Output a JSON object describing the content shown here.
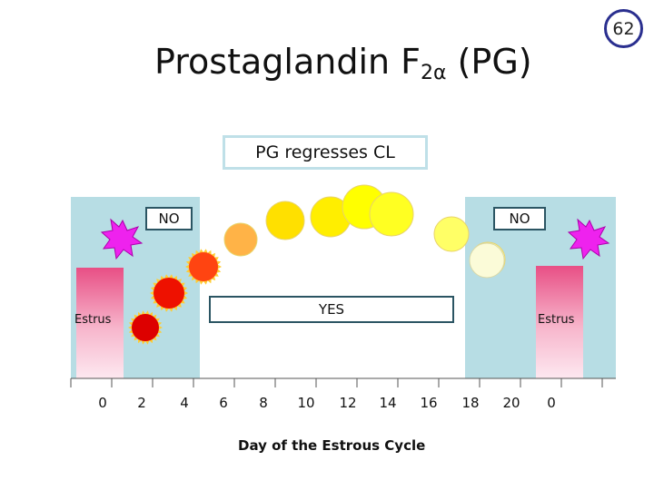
{
  "page_number": "62",
  "title": {
    "main": "Prostaglandin F",
    "subscript": "2α",
    "suffix": " (PG)"
  },
  "caption": "PG regresses CL",
  "labels": {
    "no_left": "NO",
    "no_right": "NO",
    "yes": "YES",
    "estrus_left": "Estrus",
    "estrus_right": "Estrus"
  },
  "x_axis": {
    "label": "Day of the Estrous Cycle",
    "ticks": [
      "0",
      "2",
      "4",
      "6",
      "8",
      "10",
      "12",
      "14",
      "16",
      "18",
      "20",
      "0"
    ]
  },
  "colors": {
    "non_responsive_zone": "#b7dde4",
    "estrus_bar_top": "#e85a8a",
    "estrus_bar_bottom": "#fce4ec",
    "starburst": "#ee22ee",
    "box_border": "#2b5563"
  },
  "corpus_luteum_stages": [
    {
      "day": 1,
      "color": "#dd0000",
      "shape": "spiky"
    },
    {
      "day": 2,
      "color": "#ee1100",
      "shape": "spiky"
    },
    {
      "day": 3,
      "color": "#ff4411",
      "shape": "spiky"
    },
    {
      "day": 4,
      "color": "#ffb347",
      "shape": "round"
    },
    {
      "day": 5,
      "color": "#ffe000",
      "shape": "round"
    },
    {
      "day": 6,
      "color": "#ffee00",
      "shape": "round"
    },
    {
      "day": 7,
      "color": "#ffff00",
      "shape": "round"
    },
    {
      "day": 8,
      "color": "#ffff22",
      "shape": "round"
    },
    {
      "day": 9,
      "color": "#ffff66",
      "shape": "round"
    },
    {
      "day": 10,
      "color": "#ffffaa",
      "shape": "round"
    },
    {
      "day": 11,
      "color": "#ffffcc",
      "shape": "round"
    }
  ]
}
